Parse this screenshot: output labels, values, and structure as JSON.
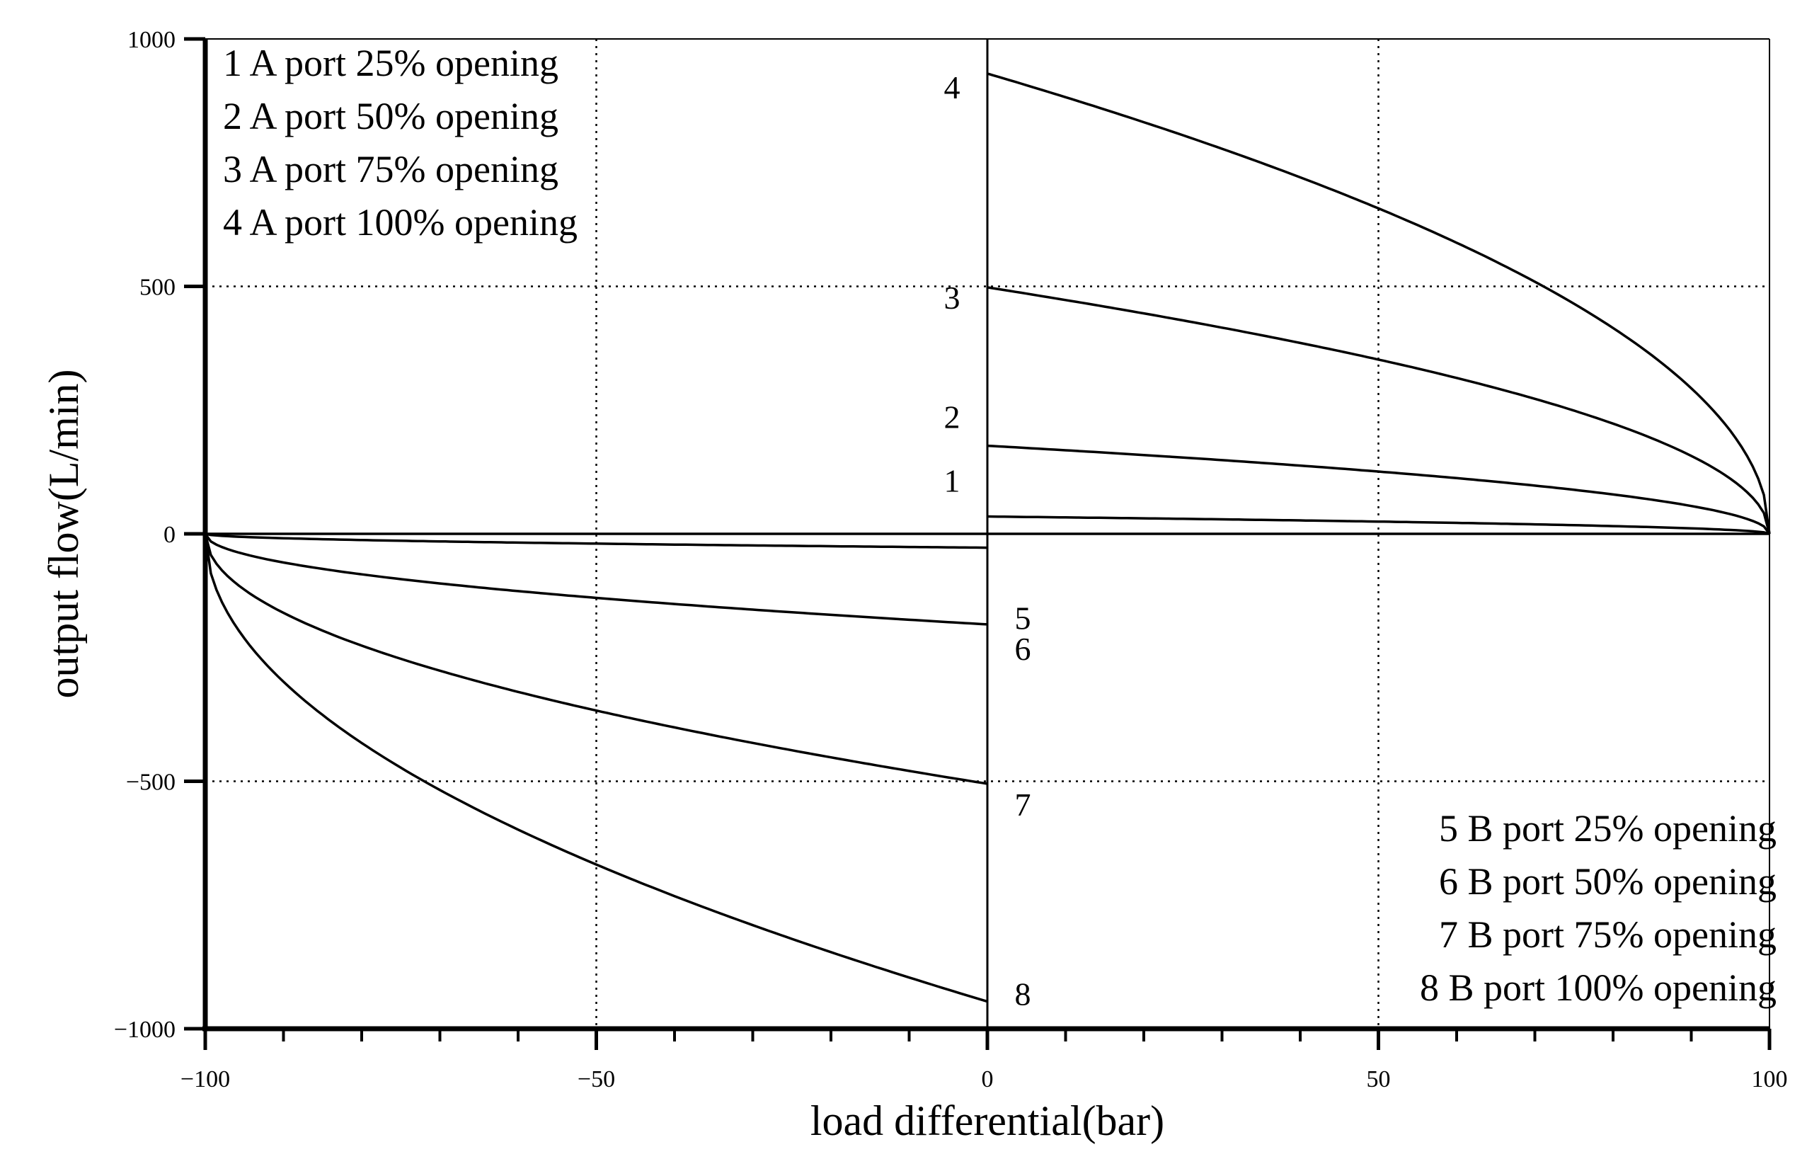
{
  "chart_data": {
    "type": "line",
    "title": "",
    "xlabel": "load differential(bar)",
    "ylabel": "output flow(L/min)",
    "xlim": [
      -100,
      100
    ],
    "ylim": [
      -1000,
      1000
    ],
    "x_ticks": [
      -100,
      -50,
      0,
      50,
      100
    ],
    "x_tick_labels": [
      "−100",
      "−50",
      "0",
      "50",
      "100"
    ],
    "y_ticks": [
      1000,
      500,
      0,
      -500,
      -1000
    ],
    "y_tick_labels": [
      "1000",
      "500",
      "0",
      "−500",
      "−1000"
    ],
    "grid": "dotted at x = -50, 50 and y = 500, -500",
    "legend_a": {
      "placement": "top-left",
      "entries": [
        "1 A port 25% opening",
        "2 A port 50% opening",
        "3 A port 75% opening",
        "4 A port 100% opening"
      ]
    },
    "legend_b": {
      "placement": "bottom-right",
      "entries": [
        "5 B port 25% opening",
        "6 B port 50% opening",
        "7 B port 75% opening",
        "8 B port 100% opening"
      ]
    },
    "series": [
      {
        "name": "1",
        "label": "1",
        "port": "A",
        "opening": "25%",
        "x": [
          0,
          25,
          50,
          75,
          90,
          100
        ],
        "values": [
          35,
          30,
          25,
          17,
          11,
          0
        ]
      },
      {
        "name": "2",
        "label": "2",
        "port": "A",
        "opening": "50%",
        "x": [
          0,
          25,
          50,
          75,
          90,
          100
        ],
        "values": [
          178,
          155,
          126,
          89,
          56,
          0
        ]
      },
      {
        "name": "3",
        "label": "3",
        "port": "A",
        "opening": "75%",
        "x": [
          0,
          25,
          50,
          75,
          90,
          100
        ],
        "values": [
          498,
          432,
          352,
          249,
          157,
          0
        ]
      },
      {
        "name": "4",
        "label": "4",
        "port": "A",
        "opening": "100%",
        "x": [
          0,
          25,
          50,
          75,
          90,
          100
        ],
        "values": [
          930,
          805,
          658,
          465,
          294,
          0
        ]
      },
      {
        "name": "5",
        "label": "5",
        "port": "B",
        "opening": "25%",
        "x": [
          -100,
          -90,
          -75,
          -50,
          -25,
          0
        ],
        "values": [
          0,
          -9,
          -14,
          -20,
          -24,
          -28
        ]
      },
      {
        "name": "6",
        "label": "6",
        "port": "B",
        "opening": "50%",
        "x": [
          -100,
          -90,
          -75,
          -50,
          -25,
          0
        ],
        "values": [
          0,
          -58,
          -92,
          -130,
          -159,
          -183
        ]
      },
      {
        "name": "7",
        "label": "7",
        "port": "B",
        "opening": "75%",
        "x": [
          -100,
          -90,
          -75,
          -50,
          -25,
          0
        ],
        "values": [
          0,
          -159,
          -252,
          -357,
          -437,
          -505
        ]
      },
      {
        "name": "8",
        "label": "8",
        "port": "B",
        "opening": "100%",
        "x": [
          -100,
          -90,
          -75,
          -50,
          -25,
          0
        ],
        "values": [
          0,
          -298,
          -472,
          -668,
          -818,
          -945
        ]
      }
    ]
  }
}
